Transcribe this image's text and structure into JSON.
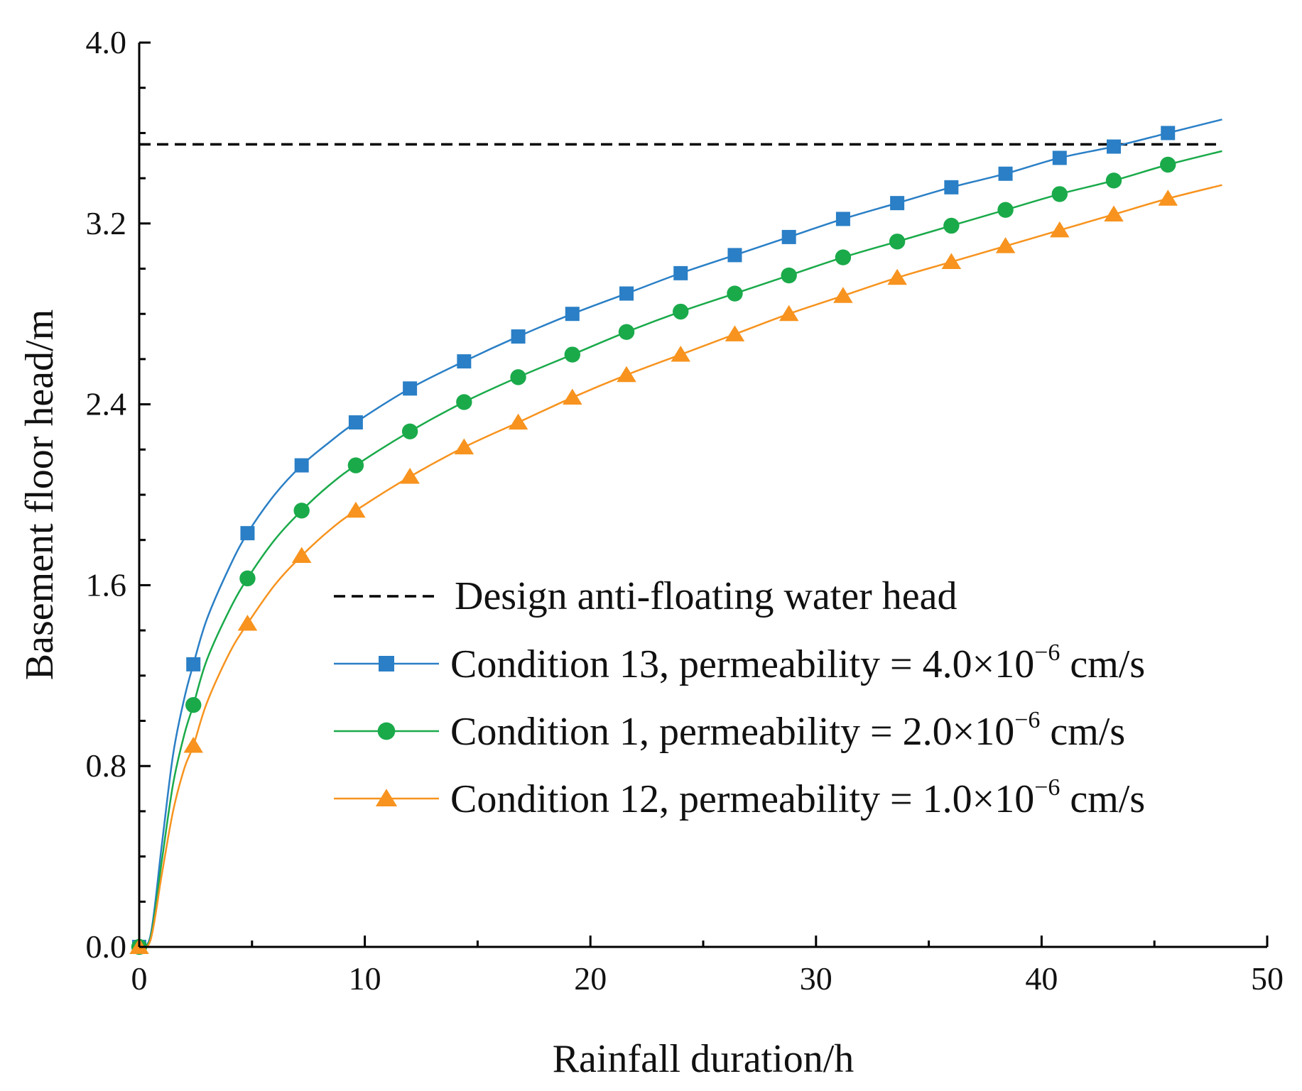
{
  "chart_data": {
    "type": "line",
    "title": "",
    "xlabel": "Rainfall duration/h",
    "ylabel": "Basement floor head/m",
    "xlim": [
      0,
      50
    ],
    "ylim": [
      0,
      4.0
    ],
    "x_ticks": [
      0,
      10,
      20,
      30,
      40,
      50
    ],
    "x_tick_labels": [
      "0",
      "10",
      "20",
      "30",
      "40",
      "50"
    ],
    "y_ticks": [
      0,
      0.8,
      1.6,
      2.4,
      3.2,
      4.0
    ],
    "y_tick_labels": [
      "0.0",
      "0.8",
      "1.6",
      "2.4",
      "3.2",
      "4.0"
    ],
    "grid": false,
    "legend_position": "center-right",
    "reference_line": {
      "name": "Design anti-floating water head",
      "y": 3.55,
      "x_range": [
        0,
        48
      ],
      "color": "#000000",
      "style": "dashed"
    },
    "series": [
      {
        "name": "Condition 13, permeability = 4.0×10",
        "exponent": "−6",
        "unit": " cm/s",
        "color": "#2a7fc6",
        "marker": "square",
        "x": [
          0,
          2.4,
          4.8,
          7.2,
          9.6,
          12,
          14.4,
          16.8,
          19.2,
          21.6,
          24,
          26.4,
          28.8,
          31.2,
          33.6,
          36,
          38.4,
          40.8,
          43.2,
          45.6
        ],
        "values": [
          0,
          1.25,
          1.83,
          2.13,
          2.32,
          2.47,
          2.59,
          2.7,
          2.8,
          2.89,
          2.98,
          3.06,
          3.14,
          3.22,
          3.29,
          3.36,
          3.42,
          3.49,
          3.54,
          3.6
        ],
        "curve_x": [
          0,
          0.5,
          1.0,
          1.5,
          2.0,
          2.4,
          3.0,
          4.0,
          4.8,
          6.0,
          7.2,
          8.4,
          9.6,
          12,
          14.4,
          16.8,
          19.2,
          21.6,
          24,
          26.4,
          28.8,
          31.2,
          33.6,
          36,
          38.4,
          40.8,
          43.2,
          45.6,
          48
        ],
        "curve_y": [
          0,
          0.05,
          0.45,
          0.85,
          1.1,
          1.25,
          1.45,
          1.68,
          1.83,
          2.0,
          2.13,
          2.23,
          2.32,
          2.47,
          2.59,
          2.7,
          2.8,
          2.89,
          2.98,
          3.06,
          3.14,
          3.22,
          3.29,
          3.36,
          3.42,
          3.49,
          3.54,
          3.6,
          3.66
        ]
      },
      {
        "name": "Condition 1, permeability = 2.0×10",
        "exponent": "−6",
        "unit": " cm/s",
        "color": "#1aaa4a",
        "marker": "circle",
        "x": [
          0,
          2.4,
          4.8,
          7.2,
          9.6,
          12,
          14.4,
          16.8,
          19.2,
          21.6,
          24,
          26.4,
          28.8,
          31.2,
          33.6,
          36,
          38.4,
          40.8,
          43.2,
          45.6
        ],
        "values": [
          0,
          1.07,
          1.63,
          1.93,
          2.13,
          2.28,
          2.41,
          2.52,
          2.62,
          2.72,
          2.81,
          2.89,
          2.97,
          3.05,
          3.12,
          3.19,
          3.26,
          3.33,
          3.39,
          3.46
        ],
        "curve_x": [
          0,
          0.5,
          1.0,
          1.5,
          2.0,
          2.4,
          3.0,
          4.0,
          4.8,
          6.0,
          7.2,
          8.4,
          9.6,
          12,
          14.4,
          16.8,
          19.2,
          21.6,
          24,
          26.4,
          28.8,
          31.2,
          33.6,
          36,
          38.4,
          40.8,
          43.2,
          45.6,
          48
        ],
        "curve_y": [
          0,
          0.04,
          0.38,
          0.72,
          0.94,
          1.07,
          1.27,
          1.49,
          1.63,
          1.8,
          1.93,
          2.04,
          2.13,
          2.28,
          2.41,
          2.52,
          2.62,
          2.72,
          2.81,
          2.89,
          2.97,
          3.05,
          3.12,
          3.19,
          3.26,
          3.33,
          3.39,
          3.46,
          3.52
        ]
      },
      {
        "name": "Condition 12, permeability = 1.0×10",
        "exponent": "−6",
        "unit": " cm/s",
        "color": "#f7931e",
        "marker": "triangle",
        "x": [
          0,
          2.4,
          4.8,
          7.2,
          9.6,
          12,
          14.4,
          16.8,
          19.2,
          21.6,
          24,
          26.4,
          28.8,
          31.2,
          33.6,
          36,
          38.4,
          40.8,
          43.2,
          45.6
        ],
        "values": [
          0,
          0.89,
          1.43,
          1.73,
          1.93,
          2.08,
          2.21,
          2.32,
          2.43,
          2.53,
          2.62,
          2.71,
          2.8,
          2.88,
          2.96,
          3.03,
          3.1,
          3.17,
          3.24,
          3.31
        ],
        "curve_x": [
          0,
          0.5,
          1.0,
          1.5,
          2.0,
          2.4,
          3.0,
          4.0,
          4.8,
          6.0,
          7.2,
          8.4,
          9.6,
          12,
          14.4,
          16.8,
          19.2,
          21.6,
          24,
          26.4,
          28.8,
          31.2,
          33.6,
          36,
          38.4,
          40.8,
          43.2,
          45.6,
          48
        ],
        "curve_y": [
          0,
          0.03,
          0.32,
          0.6,
          0.79,
          0.89,
          1.08,
          1.3,
          1.43,
          1.6,
          1.73,
          1.84,
          1.93,
          2.08,
          2.21,
          2.32,
          2.43,
          2.53,
          2.62,
          2.71,
          2.8,
          2.88,
          2.96,
          3.03,
          3.1,
          3.17,
          3.24,
          3.31,
          3.37
        ]
      }
    ]
  }
}
